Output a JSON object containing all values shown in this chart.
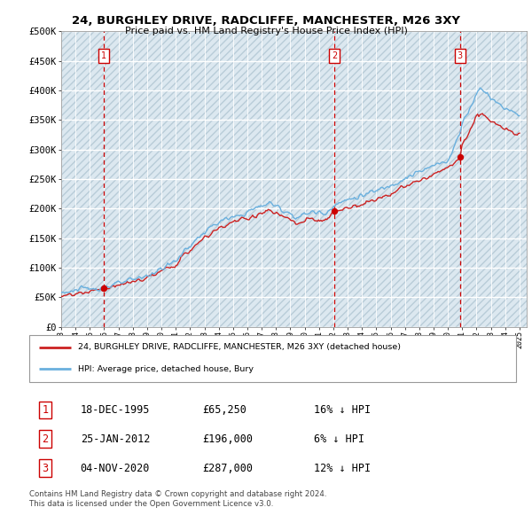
{
  "title": "24, BURGHLEY DRIVE, RADCLIFFE, MANCHESTER, M26 3XY",
  "subtitle": "Price paid vs. HM Land Registry's House Price Index (HPI)",
  "sale_year_floats": [
    1995.96,
    2012.07,
    2020.84
  ],
  "sale_prices": [
    65250,
    196000,
    287000
  ],
  "sale_labels": [
    "1",
    "2",
    "3"
  ],
  "legend_label_red": "24, BURGHLEY DRIVE, RADCLIFFE, MANCHESTER, M26 3XY (detached house)",
  "legend_label_blue": "HPI: Average price, detached house, Bury",
  "table_rows": [
    [
      "1",
      "18-DEC-1995",
      "£65,250",
      "16% ↓ HPI"
    ],
    [
      "2",
      "25-JAN-2012",
      "£196,000",
      "6% ↓ HPI"
    ],
    [
      "3",
      "04-NOV-2020",
      "£287,000",
      "12% ↓ HPI"
    ]
  ],
  "footer": "Contains HM Land Registry data © Crown copyright and database right 2024.\nThis data is licensed under the Open Government Licence v3.0.",
  "ylim": [
    0,
    500000
  ],
  "yticks": [
    0,
    50000,
    100000,
    150000,
    200000,
    250000,
    300000,
    350000,
    400000,
    450000,
    500000
  ],
  "ytick_labels": [
    "£0",
    "£50K",
    "£100K",
    "£150K",
    "£200K",
    "£250K",
    "£300K",
    "£350K",
    "£400K",
    "£450K",
    "£500K"
  ],
  "xmin": 1993.0,
  "xmax": 2025.5,
  "xtick_years": [
    1993,
    1994,
    1995,
    1996,
    1997,
    1998,
    1999,
    2000,
    2001,
    2002,
    2003,
    2004,
    2005,
    2006,
    2007,
    2008,
    2009,
    2010,
    2011,
    2012,
    2013,
    2014,
    2015,
    2016,
    2017,
    2018,
    2019,
    2020,
    2021,
    2022,
    2023,
    2024,
    2025
  ],
  "hpi_color": "#6ab0de",
  "sale_line_color": "#cc2222",
  "sale_dot_color": "#cc0000",
  "grid_color": "#c8d8e8",
  "plot_bg_color": "#dce8f0",
  "hatch_line_color": "#b8ccd8"
}
